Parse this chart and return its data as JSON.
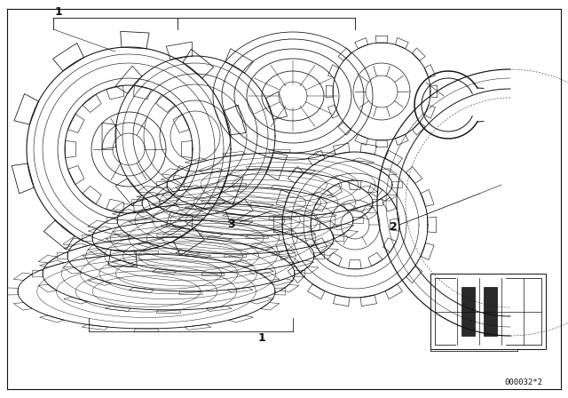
{
  "background_color": "#ffffff",
  "line_color": "#111111",
  "line_width": 0.7,
  "fig_width": 6.4,
  "fig_height": 4.48,
  "dpi": 100,
  "part_number": "000032*2"
}
